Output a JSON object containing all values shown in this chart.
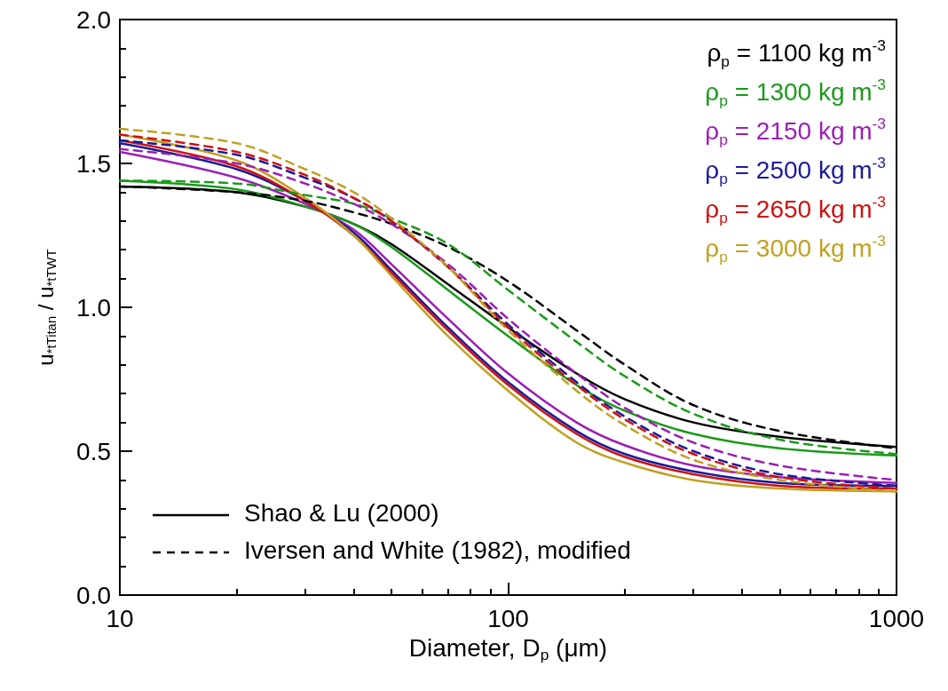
{
  "chart_data": {
    "type": "line",
    "xlabel": "Diameter, D$_{p}$ (μm)",
    "ylabel": "u$_{*tTitan}$ / u$_{*tTWT}$",
    "log": "x",
    "xlim": [
      10,
      1000
    ],
    "xticks": [
      10,
      100,
      1000
    ],
    "ylim": [
      0,
      2
    ],
    "yticks": [
      {
        "value": 0,
        "label": "0.0"
      },
      {
        "value": 0.5,
        "label": "0.5"
      },
      {
        "value": 1,
        "label": "1.0"
      },
      {
        "value": 1.5,
        "label": "1.5"
      },
      {
        "value": 2,
        "label": "2.0"
      }
    ],
    "grid": false,
    "marker": "none",
    "annotations": [
      "Shao & Lu (2000)",
      "Iversen and White (1982), modified"
    ],
    "x": [
      10,
      20,
      30,
      40,
      50,
      70,
      100,
      150,
      200,
      300,
      500,
      1000
    ],
    "series": [
      {
        "name": "ρ$_{p}$ = 1100 kg m$^{-3}$",
        "color": "#000000",
        "line_style": "solid",
        "values": [
          1.42,
          1.4,
          1.35,
          1.29,
          1.22,
          1.08,
          0.93,
          0.77,
          0.68,
          0.6,
          0.55,
          0.515
        ]
      },
      {
        "name": "ρ$_{p}$ = 1300 kg m$^{-3}$",
        "color": "#1a9a1a",
        "line_style": "solid",
        "values": [
          1.44,
          1.41,
          1.35,
          1.29,
          1.21,
          1.06,
          0.9,
          0.73,
          0.64,
          0.56,
          0.51,
          0.485
        ]
      },
      {
        "name": "ρ$_{p}$ = 2150 kg m$^{-3}$",
        "color": "#9b1fb5",
        "line_style": "solid",
        "values": [
          1.54,
          1.45,
          1.36,
          1.27,
          1.15,
          0.96,
          0.77,
          0.6,
          0.52,
          0.45,
          0.41,
          0.39
        ]
      },
      {
        "name": "ρ$_{p}$ = 2500 kg m$^{-3}$",
        "color": "#1a1a9a",
        "line_style": "solid",
        "values": [
          1.57,
          1.48,
          1.37,
          1.26,
          1.13,
          0.93,
          0.74,
          0.57,
          0.49,
          0.43,
          0.39,
          0.38
        ]
      },
      {
        "name": "ρ$_{p}$ = 2650 kg m$^{-3}$",
        "color": "#d01010",
        "line_style": "solid",
        "values": [
          1.58,
          1.49,
          1.37,
          1.25,
          1.12,
          0.92,
          0.73,
          0.56,
          0.48,
          0.42,
          0.38,
          0.37
        ]
      },
      {
        "name": "ρ$_{p}$ = 3000 kg m$^{-3}$",
        "color": "#c0a020",
        "line_style": "solid",
        "values": [
          1.6,
          1.51,
          1.38,
          1.25,
          1.11,
          0.9,
          0.71,
          0.53,
          0.46,
          0.4,
          0.37,
          0.36
        ]
      },
      {
        "color": "#000000",
        "line_style": "dashed",
        "values": [
          1.42,
          1.4,
          1.37,
          1.33,
          1.29,
          1.21,
          1.09,
          0.92,
          0.8,
          0.66,
          0.57,
          0.51
        ]
      },
      {
        "color": "#1a9a1a",
        "line_style": "dashed",
        "values": [
          1.44,
          1.43,
          1.39,
          1.36,
          1.31,
          1.22,
          1.06,
          0.88,
          0.76,
          0.63,
          0.54,
          0.49
        ]
      },
      {
        "color": "#9b1fb5",
        "line_style": "dashed",
        "values": [
          1.55,
          1.5,
          1.43,
          1.36,
          1.29,
          1.15,
          0.96,
          0.77,
          0.65,
          0.53,
          0.45,
          0.4
        ]
      },
      {
        "color": "#1a1a9a",
        "line_style": "dashed",
        "values": [
          1.58,
          1.53,
          1.45,
          1.38,
          1.3,
          1.14,
          0.94,
          0.74,
          0.62,
          0.5,
          0.42,
          0.38
        ]
      },
      {
        "color": "#d01010",
        "line_style": "dashed",
        "values": [
          1.6,
          1.54,
          1.46,
          1.38,
          1.3,
          1.14,
          0.93,
          0.73,
          0.61,
          0.49,
          0.41,
          0.37
        ]
      },
      {
        "color": "#c0a020",
        "line_style": "dashed",
        "values": [
          1.62,
          1.57,
          1.48,
          1.4,
          1.31,
          1.14,
          0.92,
          0.71,
          0.59,
          0.47,
          0.4,
          0.36
        ]
      }
    ]
  }
}
